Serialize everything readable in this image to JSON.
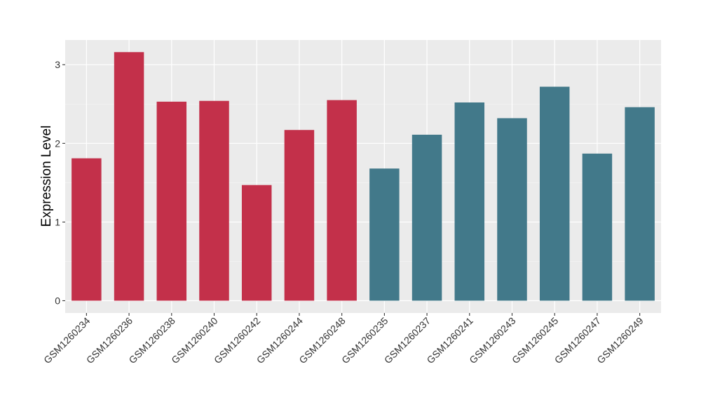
{
  "chart_data": {
    "type": "bar",
    "title": "",
    "xlabel": "",
    "ylabel": "Expression Level",
    "ylim": [
      0,
      3.3
    ],
    "yticks": [
      0,
      1,
      2,
      3
    ],
    "grid": true,
    "background": "#EBEBEB",
    "categories": [
      "GSM1260234",
      "GSM1260236",
      "GSM1260238",
      "GSM1260240",
      "GSM1260242",
      "GSM1260244",
      "GSM1260248",
      "GSM1260235",
      "GSM1260237",
      "GSM1260241",
      "GSM1260243",
      "GSM1260245",
      "GSM1260247",
      "GSM1260249"
    ],
    "values": [
      1.81,
      3.16,
      2.53,
      2.54,
      1.47,
      2.17,
      2.55,
      1.68,
      2.11,
      2.52,
      2.32,
      2.72,
      1.87,
      2.46
    ],
    "colors": [
      "#C3304A",
      "#C3304A",
      "#C3304A",
      "#C3304A",
      "#C3304A",
      "#C3304A",
      "#C3304A",
      "#42798A",
      "#42798A",
      "#42798A",
      "#42798A",
      "#42798A",
      "#42798A",
      "#42798A"
    ]
  }
}
